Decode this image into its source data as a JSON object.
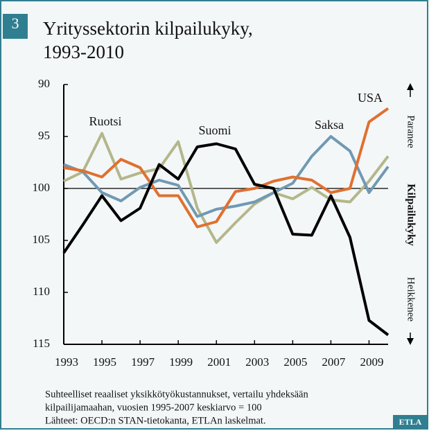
{
  "chart_data": {
    "type": "line",
    "badge": "3",
    "title": [
      "Yrityssektorin kilpailukyky,",
      "1993-2010"
    ],
    "x": [
      1993,
      1994,
      1995,
      1996,
      1997,
      1998,
      1999,
      2000,
      2001,
      2002,
      2003,
      2004,
      2005,
      2006,
      2007,
      2008,
      2009,
      2010
    ],
    "xlim": [
      1993,
      2010
    ],
    "xticks": [
      1993,
      1995,
      1997,
      1999,
      2001,
      2003,
      2005,
      2007,
      2009
    ],
    "ylim": [
      90,
      115
    ],
    "yticks": [
      90,
      95,
      100,
      105,
      110,
      115
    ],
    "y_inverted": true,
    "reference_line": 100,
    "series": [
      {
        "name": "Ruotsi",
        "color": "#b3b78a",
        "values": [
          99.3,
          98.4,
          94.7,
          99.1,
          98.5,
          98.1,
          95.5,
          101.9,
          105.2,
          103.3,
          101.5,
          100.4,
          101.0,
          99.9,
          101.1,
          101.3,
          99.3,
          96.9
        ]
      },
      {
        "name": "Saksa",
        "color": "#7099b3",
        "values": [
          97.7,
          98.4,
          100.4,
          101.2,
          99.9,
          99.2,
          99.7,
          102.7,
          102.0,
          101.7,
          101.3,
          100.4,
          99.5,
          96.9,
          95.0,
          96.4,
          100.4,
          97.9
        ]
      },
      {
        "name": "USA",
        "color": "#e0702f",
        "values": [
          98.0,
          98.3,
          98.9,
          97.2,
          98.0,
          100.7,
          100.7,
          103.7,
          103.2,
          100.3,
          100.0,
          99.3,
          98.9,
          99.2,
          100.4,
          100.0,
          93.6,
          92.3
        ]
      },
      {
        "name": "Suomi",
        "color": "#000000",
        "values": [
          106.2,
          103.5,
          100.7,
          103.1,
          101.9,
          97.7,
          99.1,
          96.0,
          95.7,
          96.2,
          99.6,
          100.0,
          104.4,
          104.5,
          100.7,
          104.7,
          112.7,
          114.1
        ]
      }
    ],
    "right_axis_label": {
      "top": "Paranee",
      "middle": "Kilpailukyky",
      "bottom": "Heikkenee"
    },
    "notes": [
      "Suhteelliset reaaliset yksikkötyökustannukset, vertailu yhdeksään",
      "kilpailijamaahan, vuosien 1995-2007 keskiarvo = 100",
      "Lähteet: OECD:n STAN-tietokanta, ETLAn laskelmat."
    ],
    "source_badge": "ETLA"
  }
}
